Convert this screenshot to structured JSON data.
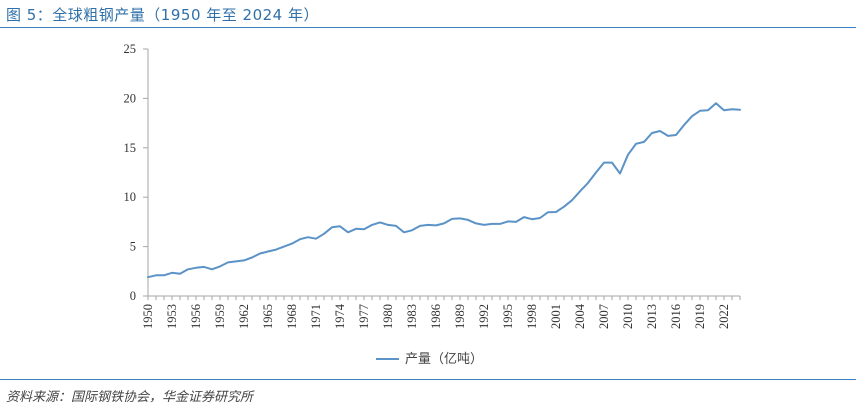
{
  "figure": {
    "title": "图 5：全球粗钢产量（1950 年至 2024 年）",
    "source": "资料来源：国际钢铁协会，华金证券研究所"
  },
  "colors": {
    "accent": "#2f6fa8",
    "series": "#5b93c7",
    "axis": "#a6a6a6"
  },
  "chart_data": {
    "type": "line",
    "title": "",
    "xlabel": "",
    "ylabel": "",
    "ylim": [
      0,
      25
    ],
    "yticks": [
      0,
      5,
      10,
      15,
      20,
      25
    ],
    "xlim": [
      1950,
      2024
    ],
    "xticks": [
      1950,
      1953,
      1956,
      1959,
      1962,
      1965,
      1968,
      1971,
      1974,
      1977,
      1980,
      1983,
      1986,
      1989,
      1992,
      1995,
      1998,
      2001,
      2004,
      2007,
      2010,
      2013,
      2016,
      2019,
      2022
    ],
    "grid": false,
    "legend_position": "bottom-center",
    "series": [
      {
        "name": "产量（亿吨）",
        "x": [
          1950,
          1951,
          1952,
          1953,
          1954,
          1955,
          1956,
          1957,
          1958,
          1959,
          1960,
          1961,
          1962,
          1963,
          1964,
          1965,
          1966,
          1967,
          1968,
          1969,
          1970,
          1971,
          1972,
          1973,
          1974,
          1975,
          1976,
          1977,
          1978,
          1979,
          1980,
          1981,
          1982,
          1983,
          1984,
          1985,
          1986,
          1987,
          1988,
          1989,
          1990,
          1991,
          1992,
          1993,
          1994,
          1995,
          1996,
          1997,
          1998,
          1999,
          2000,
          2001,
          2002,
          2003,
          2004,
          2005,
          2006,
          2007,
          2008,
          2009,
          2010,
          2011,
          2012,
          2013,
          2014,
          2015,
          2016,
          2017,
          2018,
          2019,
          2020,
          2021,
          2022,
          2023,
          2024
        ],
        "y": [
          1.9,
          2.1,
          2.1,
          2.35,
          2.25,
          2.7,
          2.85,
          2.95,
          2.7,
          3.0,
          3.4,
          3.5,
          3.6,
          3.9,
          4.3,
          4.5,
          4.7,
          5.0,
          5.3,
          5.75,
          5.95,
          5.8,
          6.3,
          6.95,
          7.05,
          6.45,
          6.8,
          6.75,
          7.2,
          7.45,
          7.2,
          7.1,
          6.45,
          6.65,
          7.1,
          7.2,
          7.15,
          7.35,
          7.8,
          7.85,
          7.7,
          7.35,
          7.2,
          7.3,
          7.3,
          7.55,
          7.5,
          7.99,
          7.77,
          7.89,
          8.48,
          8.5,
          9.04,
          9.7,
          10.6,
          11.45,
          12.5,
          13.5,
          13.5,
          12.4,
          14.3,
          15.4,
          15.6,
          16.5,
          16.7,
          16.2,
          16.3,
          17.3,
          18.2,
          18.75,
          18.8,
          19.5,
          18.8,
          18.9,
          18.85
        ]
      }
    ]
  }
}
